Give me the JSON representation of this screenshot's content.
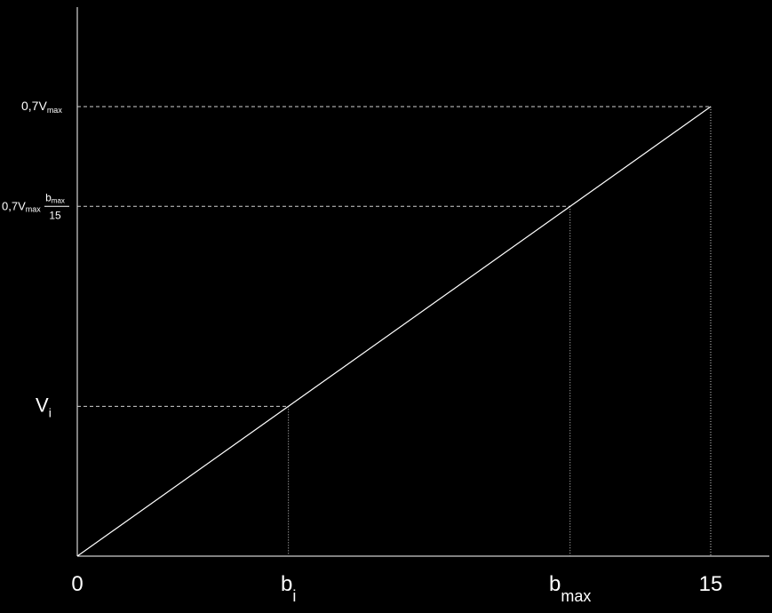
{
  "colors": {
    "background": "#000000",
    "foreground": "#ffffff",
    "guide": "#d0d0d0"
  },
  "chart_data": {
    "type": "line",
    "title": "",
    "xlabel": "",
    "ylabel": "",
    "grid": false,
    "xlim": [
      0,
      15
    ],
    "ylim": [
      0,
      0.7
    ],
    "series": [
      {
        "x": [
          0,
          15
        ],
        "y": [
          0,
          0.7
        ]
      }
    ],
    "x_ticks": [
      {
        "value": 0,
        "main": "0",
        "sub": ""
      },
      {
        "value": 5,
        "main": "b",
        "sub": "i"
      },
      {
        "value": 11.67,
        "main": "b",
        "sub": "max"
      },
      {
        "value": 15,
        "main": "15",
        "sub": ""
      }
    ],
    "y_ticks": [
      {
        "value": 0.7,
        "label": {
          "prefix": "0,7V",
          "sub": "max"
        }
      },
      {
        "value": 0.5447,
        "label": {
          "prefix": "0,7V",
          "sub": "max",
          "frac_num": "b",
          "frac_num_sub": "max",
          "frac_den": "15"
        }
      },
      {
        "value": 0.2333,
        "label": {
          "prefix": "V",
          "sub": "i"
        }
      }
    ],
    "guides": [
      {
        "x": 5,
        "y": 0.2333,
        "horizontal": "dashed",
        "vertical": "dotted"
      },
      {
        "x": 11.67,
        "y": 0.5447,
        "horizontal": "dashed",
        "vertical": "dotted"
      },
      {
        "x": 15,
        "y": 0.7,
        "horizontal": "dashed",
        "vertical": "dotted"
      }
    ]
  }
}
